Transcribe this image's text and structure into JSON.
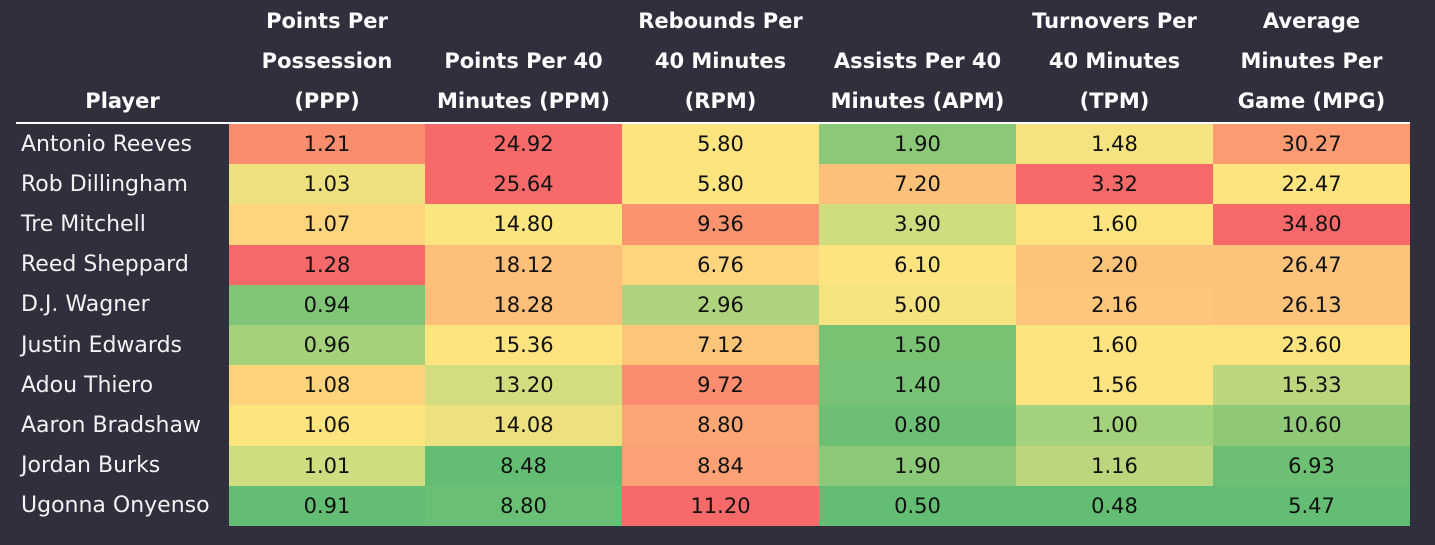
{
  "chart_data": {
    "type": "table",
    "columns": [
      {
        "key": "player",
        "label": "Player"
      },
      {
        "key": "ppp",
        "label": "Points Per Possession (PPP)"
      },
      {
        "key": "ppm",
        "label": "Points Per 40 Minutes (PPM)"
      },
      {
        "key": "rpm",
        "label": "Rebounds Per 40 Minutes (RPM)"
      },
      {
        "key": "apm",
        "label": "Assists Per 40 Minutes (APM)"
      },
      {
        "key": "tpm",
        "label": "Turnovers Per 40 Minutes (TPM)"
      },
      {
        "key": "mpg",
        "label": "Average Minutes Per Game (MPG)"
      }
    ],
    "rows": [
      {
        "player": "Antonio Reeves",
        "values": [
          "1.21",
          "24.92",
          "5.80",
          "1.90",
          "1.48",
          "30.27"
        ],
        "colors": [
          "#fb8d6f",
          "#f86a6a",
          "#fee47e",
          "#8bc877",
          "#f5e37f",
          "#fc9a72"
        ]
      },
      {
        "player": "Rob Dillingham",
        "values": [
          "1.03",
          "25.64",
          "5.80",
          "7.20",
          "3.32",
          "22.47"
        ],
        "colors": [
          "#ede07f",
          "#f86a6a",
          "#fee47e",
          "#fdc07a",
          "#f86a6a",
          "#fee47e"
        ]
      },
      {
        "player": "Tre Mitchell",
        "values": [
          "1.07",
          "14.80",
          "9.36",
          "3.90",
          "1.60",
          "34.80"
        ],
        "colors": [
          "#fed57c",
          "#fbe57f",
          "#fb936f",
          "#cfdc7f",
          "#fee47e",
          "#f86a6a"
        ]
      },
      {
        "player": "Reed Sheppard",
        "values": [
          "1.28",
          "18.12",
          "6.76",
          "6.10",
          "2.20",
          "26.47"
        ],
        "colors": [
          "#f86a6a",
          "#fdbf79",
          "#fed47c",
          "#fee47e",
          "#fcc37a",
          "#fec37a"
        ]
      },
      {
        "player": "D.J. Wagner",
        "values": [
          "0.94",
          "18.28",
          "2.96",
          "5.00",
          "2.16",
          "26.13"
        ],
        "colors": [
          "#80c575",
          "#fdbe79",
          "#afd37c",
          "#f5e37f",
          "#fdc67a",
          "#fec37a"
        ]
      },
      {
        "player": "Justin Edwards",
        "values": [
          "0.96",
          "15.36",
          "7.12",
          "1.50",
          "1.60",
          "23.60"
        ],
        "colors": [
          "#a6d17b",
          "#fee47e",
          "#fdc57a",
          "#79c274",
          "#fee47e",
          "#fee47e"
        ]
      },
      {
        "player": "Adou Thiero",
        "values": [
          "1.08",
          "13.20",
          "9.72",
          "1.40",
          "1.56",
          "15.33"
        ],
        "colors": [
          "#fed37c",
          "#d3dd7f",
          "#fb8c6f",
          "#77c274",
          "#fee47e",
          "#bcd67e"
        ]
      },
      {
        "player": "Aaron Bradshaw",
        "values": [
          "1.06",
          "14.08",
          "8.80",
          "0.80",
          "1.00",
          "10.60"
        ],
        "colors": [
          "#fee47e",
          "#ede07f",
          "#fca575",
          "#6cbf73",
          "#a4d17b",
          "#8fc978"
        ]
      },
      {
        "player": "Jordan Burks",
        "values": [
          "1.01",
          "8.48",
          "8.84",
          "1.90",
          "1.16",
          "6.93"
        ],
        "colors": [
          "#cfdc7f",
          "#63be73",
          "#fca175",
          "#8bc877",
          "#bcd67e",
          "#6dbf73"
        ]
      },
      {
        "player": "Ugonna Onyenso",
        "values": [
          "0.91",
          "8.80",
          "11.20",
          "0.50",
          "0.48",
          "5.47"
        ],
        "colors": [
          "#63be73",
          "#69bf73",
          "#f86a6a",
          "#63be73",
          "#63be73",
          "#63be73"
        ]
      }
    ]
  }
}
